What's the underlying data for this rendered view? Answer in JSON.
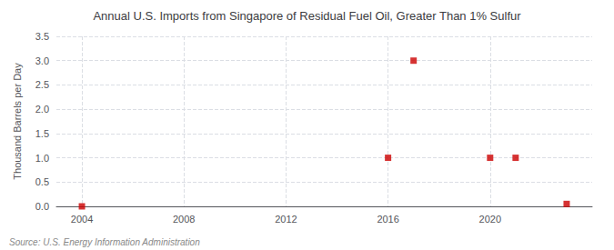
{
  "chart_data": {
    "type": "scatter",
    "title": "Annual U.S. Imports from Singapore of Residual Fuel Oil, Greater Than 1% Sulfur",
    "ylabel": "Thousand Barrels per Day",
    "annotation": "Source: U.S. Energy Information Administration",
    "x": [
      2004,
      2016,
      2017,
      2020,
      2021,
      2023
    ],
    "values": [
      0.0,
      1.0,
      3.0,
      1.0,
      1.0,
      0.05
    ],
    "color": "#cc0000",
    "marker": "square",
    "xlim": [
      2003,
      2024
    ],
    "xticks": [
      2004,
      2008,
      2012,
      2016,
      2020
    ],
    "ylim": [
      0.0,
      3.5
    ],
    "yticks": [
      {
        "value": 0.0,
        "label": "0.0"
      },
      0.5,
      {
        "value": 1.0,
        "label": "1.0"
      },
      1.5,
      {
        "value": 2.0,
        "label": "2.0"
      },
      2.5,
      {
        "value": 3.0,
        "label": "3.0"
      },
      3.5
    ],
    "grid": true
  }
}
